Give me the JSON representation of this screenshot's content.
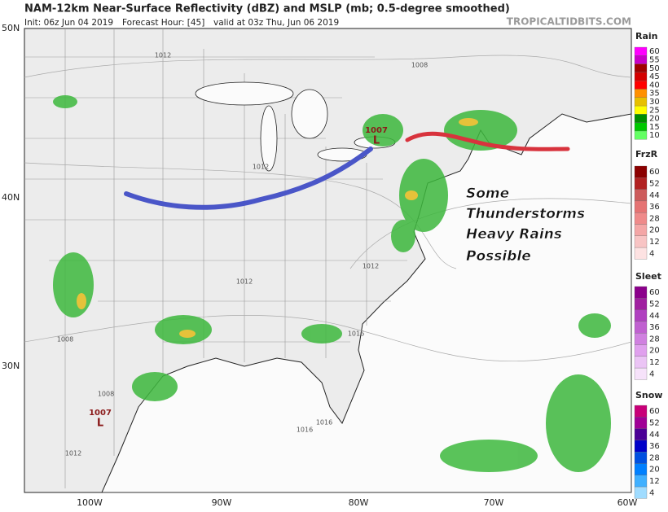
{
  "header": {
    "title": "NAM-12km Near-Surface Reflectivity (dBZ) and MSLP (mb; 0.5-degree smoothed)",
    "init": "Init: 06z Jun 04 2019",
    "forecast_hour": "Forecast Hour: [45]",
    "valid": "valid at 03z Thu, Jun 06 2019",
    "watermark": "TROPICALTIDBITS.COM"
  },
  "map": {
    "lat_labels": [
      "50N",
      "40N",
      "30N"
    ],
    "lon_labels": [
      "100W",
      "90W",
      "80W",
      "70W",
      "60W"
    ],
    "isobar_labels": [
      "1012",
      "1008",
      "1012",
      "1012",
      "1012",
      "1008",
      "1016",
      "1008",
      "1016",
      "1016",
      "1012"
    ],
    "lows": [
      {
        "pressure": "1007",
        "symbol": "L"
      },
      {
        "pressure": "1007",
        "symbol": "L"
      }
    ],
    "annotation": [
      "Some",
      "Thunderstorms",
      "Heavy Rains",
      "Possible"
    ]
  },
  "legend": [
    {
      "title": "Rain",
      "ticks": [
        60,
        55,
        50,
        45,
        40,
        35,
        30,
        25,
        20,
        15,
        10
      ]
    },
    {
      "title": "FrzR",
      "ticks": [
        60,
        52,
        44,
        36,
        28,
        20,
        12,
        4
      ]
    },
    {
      "title": "Sleet",
      "ticks": [
        60,
        52,
        44,
        36,
        28,
        20,
        12,
        4
      ]
    },
    {
      "title": "Snow",
      "ticks": [
        60,
        52,
        44,
        36,
        28,
        20,
        12,
        4
      ]
    }
  ]
}
